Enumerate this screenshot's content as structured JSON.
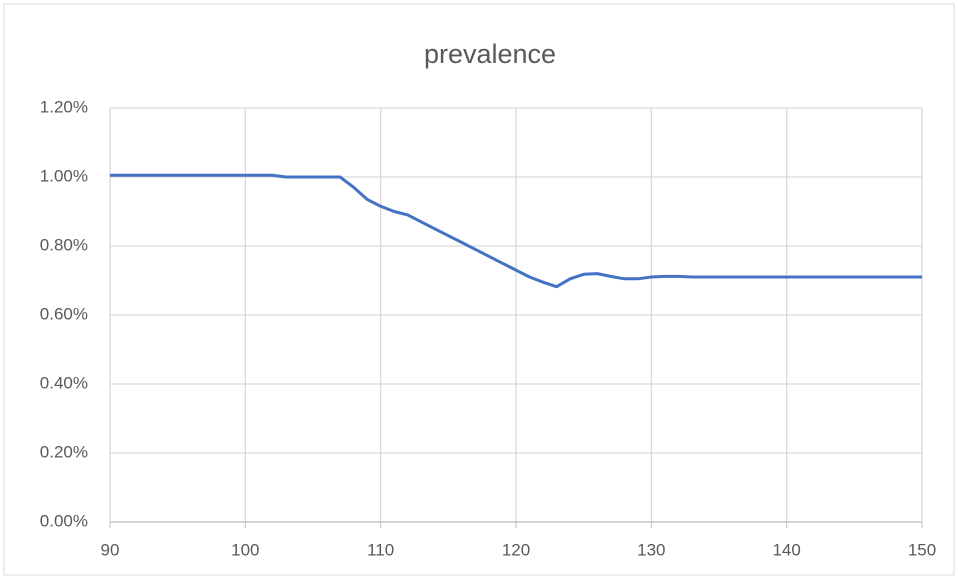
{
  "chart_data": {
    "type": "line",
    "title": "prevalence",
    "x": [
      90,
      102,
      103,
      107,
      108,
      109,
      110,
      111,
      112,
      113,
      114,
      115,
      116,
      117,
      118,
      119,
      120,
      121,
      122,
      123,
      124,
      125,
      126,
      127,
      128,
      129,
      130,
      131,
      132,
      133,
      150
    ],
    "values": [
      1.005,
      1.005,
      1.0,
      1.0,
      0.97,
      0.935,
      0.915,
      0.9,
      0.89,
      0.87,
      0.85,
      0.83,
      0.81,
      0.79,
      0.77,
      0.75,
      0.73,
      0.71,
      0.695,
      0.682,
      0.705,
      0.718,
      0.72,
      0.712,
      0.705,
      0.705,
      0.71,
      0.712,
      0.712,
      0.71,
      0.71
    ],
    "color": "#4472c4",
    "xlim": [
      90,
      150
    ],
    "xticks": [
      90,
      100,
      110,
      120,
      130,
      140,
      150
    ],
    "ylim": [
      0,
      1.2
    ],
    "yticks": [
      {
        "value": 0,
        "label": "0.00%"
      },
      {
        "value": 0.2,
        "label": "0.20%"
      },
      {
        "value": 0.4,
        "label": "0.40%"
      },
      {
        "value": 0.6,
        "label": "0.60%"
      },
      {
        "value": 0.8,
        "label": "0.80%"
      },
      {
        "value": 1.0,
        "label": "1.00%"
      },
      {
        "value": 1.2,
        "label": "1.20%"
      }
    ],
    "grid": true
  }
}
